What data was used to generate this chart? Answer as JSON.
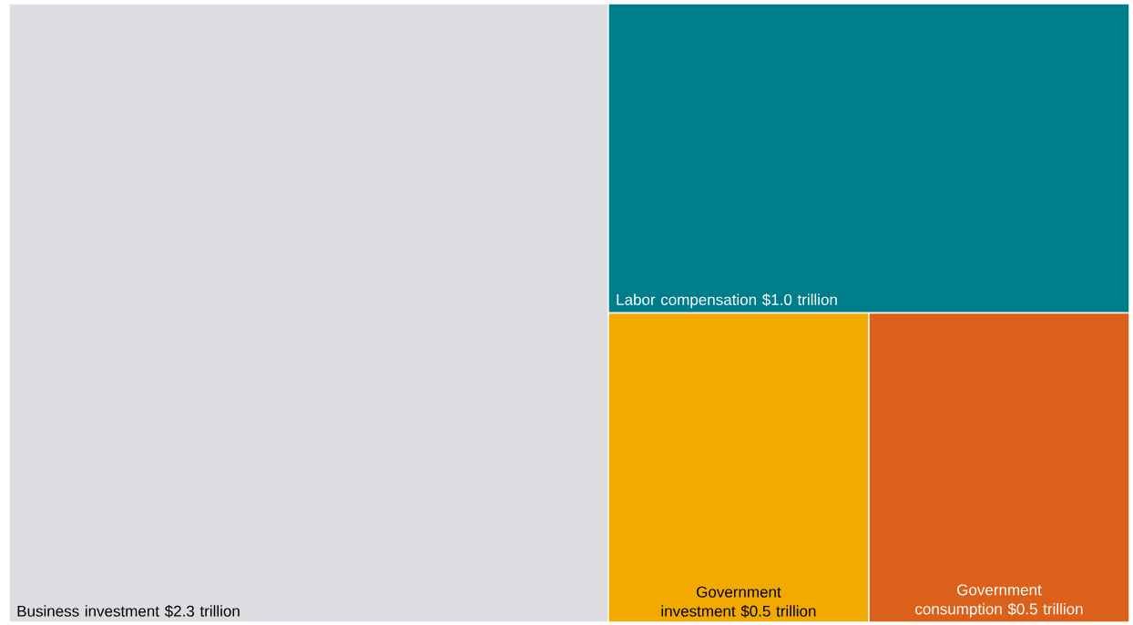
{
  "chart_data": {
    "type": "other",
    "categories": [
      "Business investment",
      "Labor compensation",
      "Government investment",
      "Government consumption"
    ],
    "values": [
      2.3,
      1.0,
      0.5,
      0.5
    ],
    "value_labels": [
      "$2.3 trillion",
      "$1.0 trillion",
      "$0.5 trillion",
      "$0.5 trillion"
    ],
    "colors": [
      "#dcdde0",
      "#007d8a",
      "#f2aa00",
      "#db601a"
    ]
  }
}
